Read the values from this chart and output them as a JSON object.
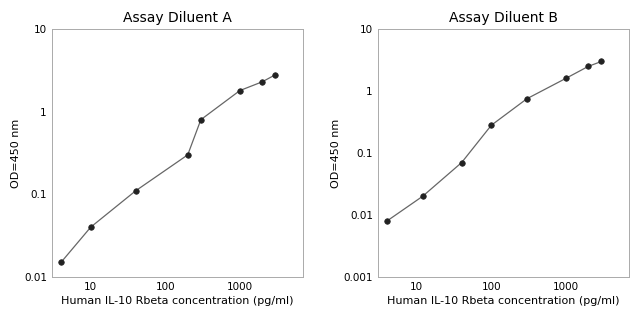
{
  "chart_a": {
    "title": "Assay Diluent A",
    "x": [
      4,
      10,
      40,
      200,
      300,
      1000,
      2000,
      3000
    ],
    "y": [
      0.015,
      0.04,
      0.11,
      0.3,
      0.8,
      1.8,
      2.3,
      2.8
    ],
    "xlim": [
      3,
      7000
    ],
    "ylim": [
      0.01,
      10
    ],
    "xlabel": "Human IL-10 Rbeta concentration (pg/ml)",
    "ylabel": "OD=450 nm",
    "xticks": [
      10,
      100,
      1000
    ],
    "xtick_labels": [
      "10",
      "100",
      "1000"
    ],
    "yticks": [
      0.01,
      0.1,
      1,
      10
    ],
    "ytick_labels": [
      "0.01",
      "0.1",
      "1",
      "10"
    ]
  },
  "chart_b": {
    "title": "Assay Diluent B",
    "x": [
      4,
      12,
      40,
      100,
      300,
      1000,
      2000,
      3000
    ],
    "y": [
      0.008,
      0.02,
      0.07,
      0.28,
      0.75,
      1.6,
      2.5,
      3.0
    ],
    "xlim": [
      3,
      7000
    ],
    "ylim": [
      0.001,
      10
    ],
    "xlabel": "Human IL-10 Rbeta concentration (pg/ml)",
    "ylabel": "OD=450 nm",
    "xticks": [
      10,
      100,
      1000
    ],
    "xtick_labels": [
      "10",
      "100",
      "1000"
    ],
    "yticks": [
      0.001,
      0.01,
      0.1,
      1,
      10
    ],
    "ytick_labels": [
      "0.001",
      "0.01",
      "0.1",
      "1",
      "10"
    ]
  },
  "line_color": "#666666",
  "marker_color": "#222222",
  "marker_size": 4,
  "bg_color": "#ffffff",
  "title_fontsize": 10,
  "label_fontsize": 8,
  "tick_fontsize": 7.5
}
